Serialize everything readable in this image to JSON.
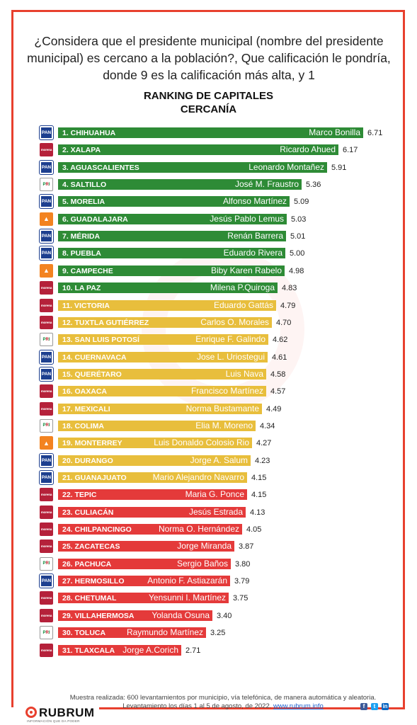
{
  "question": "¿Considera que el presidente municipal   (nombre del presidente municipal) es cercano a la población?, Que calificación le pondría, donde 9 es la calificación más alta, y  1",
  "chart_data": {
    "type": "bar",
    "title": "RANKING DE CAPITALES",
    "subtitle": "CERCANÍA",
    "orientation": "horizontal",
    "colors": {
      "green": "#2e8b36",
      "yellow": "#e8be3c",
      "red": "#e43a3a"
    },
    "rows": [
      {
        "label": "1. CHIHUAHUA",
        "name": "Marco Bonilla",
        "value": 6.71,
        "value_label": "6.71",
        "party": "PAN",
        "color": "green"
      },
      {
        "label": "2. XALAPA",
        "name": "Ricardo Ahued",
        "value": 6.17,
        "value_label": "6.17",
        "party": "morena",
        "color": "green"
      },
      {
        "label": "3. AGUASCALIENTES",
        "name": "Leonardo Montañez",
        "value": 5.91,
        "value_label": "5.91",
        "party": "PAN",
        "color": "green"
      },
      {
        "label": "4. SALTILLO",
        "name": "José M. Fraustro",
        "value": 5.36,
        "value_label": "5.36",
        "party": "PRI",
        "color": "green"
      },
      {
        "label": "5. MORELIA",
        "name": "Alfonso Martínez",
        "value": 5.09,
        "value_label": "5.09",
        "party": "PAN",
        "color": "green"
      },
      {
        "label": "6. GUADALAJARA",
        "name": "Jesús Pablo Lemus",
        "value": 5.03,
        "value_label": "5.03",
        "party": "MC",
        "color": "green"
      },
      {
        "label": "7. MÉRIDA",
        "name": "Renán Barrera",
        "value": 5.01,
        "value_label": "5.01",
        "party": "PAN",
        "color": "green"
      },
      {
        "label": "8. PUEBLA",
        "name": "Eduardo Rivera",
        "value": 5.0,
        "value_label": "5.00",
        "party": "PAN",
        "color": "green"
      },
      {
        "label": "9. CAMPECHE",
        "name": "Biby Karen Rabelo",
        "value": 4.98,
        "value_label": "4.98",
        "party": "MC",
        "color": "green"
      },
      {
        "label": "10. LA PAZ",
        "name": "Milena P.Quiroga",
        "value": 4.83,
        "value_label": "4.83",
        "party": "morena",
        "color": "green"
      },
      {
        "label": "11. VICTORIA",
        "name": "Eduardo Gattás",
        "value": 4.79,
        "value_label": "4.79",
        "party": "morena",
        "color": "yellow"
      },
      {
        "label": "12. TUXTLA GUTIÉRREZ",
        "name": "Carlos O. Morales",
        "value": 4.7,
        "value_label": "4.70",
        "party": "morena",
        "color": "yellow"
      },
      {
        "label": "13. SAN LUIS POTOSÍ",
        "name": "Enrique F. Galindo",
        "value": 4.62,
        "value_label": "4.62",
        "party": "PRI",
        "color": "yellow"
      },
      {
        "label": "14. CUERNAVACA",
        "name": "Jose L. Uriostegui",
        "value": 4.61,
        "value_label": "4.61",
        "party": "PAN",
        "color": "yellow"
      },
      {
        "label": "15. QUERÉTARO",
        "name": "Luis Nava",
        "value": 4.58,
        "value_label": "4.58",
        "party": "PAN",
        "color": "yellow"
      },
      {
        "label": "16. OAXACA",
        "name": "Francisco Martínez",
        "value": 4.57,
        "value_label": "4.57",
        "party": "morena",
        "color": "yellow"
      },
      {
        "label": "17. MEXICALI",
        "name": "Norma  Bustamante",
        "value": 4.49,
        "value_label": "4.49",
        "party": "morena",
        "color": "yellow"
      },
      {
        "label": "18. COLIMA",
        "name": "Elia M. Moreno",
        "value": 4.34,
        "value_label": "4.34",
        "party": "PRI",
        "color": "yellow"
      },
      {
        "label": "19. MONTERREY",
        "name": "Luis Donaldo Colosio Rio",
        "value": 4.27,
        "value_label": "4.27",
        "party": "MC",
        "color": "yellow"
      },
      {
        "label": "20. DURANGO",
        "name": "Jorge A. Salum",
        "value": 4.23,
        "value_label": "4.23",
        "party": "PAN",
        "color": "yellow"
      },
      {
        "label": "21. GUANAJUATO",
        "name": "Mario Alejandro Navarro",
        "value": 4.15,
        "value_label": "4.15",
        "party": "PAN",
        "color": "yellow"
      },
      {
        "label": "22. TEPIC",
        "name": "Maria G. Ponce",
        "value": 4.15,
        "value_label": "4.15",
        "party": "morena",
        "color": "red"
      },
      {
        "label": "23. CULIACÁN",
        "name": "Jesús Estrada",
        "value": 4.13,
        "value_label": "4.13",
        "party": "morena",
        "color": "red"
      },
      {
        "label": "24. CHILPANCINGO",
        "name": "Norma O. Hernández",
        "value": 4.05,
        "value_label": "4.05",
        "party": "morena",
        "color": "red"
      },
      {
        "label": "25. ZACATECAS",
        "name": "Jorge Miranda",
        "value": 3.87,
        "value_label": "3.87",
        "party": "morena",
        "color": "red"
      },
      {
        "label": "26. PACHUCA",
        "name": "Sergio Baños",
        "value": 3.8,
        "value_label": "3.80",
        "party": "PRI",
        "color": "red"
      },
      {
        "label": "27. HERMOSILLO",
        "name": "Antonio F. Astiazarán",
        "value": 3.79,
        "value_label": "3.79",
        "party": "PAN",
        "color": "red"
      },
      {
        "label": "28. CHETUMAL",
        "name": "Yensunni I. Martínez",
        "value": 3.75,
        "value_label": "3.75",
        "party": "morena",
        "color": "red"
      },
      {
        "label": "29. VILLAHERMOSA",
        "name": "Yolanda Osuna",
        "value": 3.4,
        "value_label": "3.40",
        "party": "morena",
        "color": "red"
      },
      {
        "label": "30. TOLUCA",
        "name": "Raymundo  Martínez",
        "value": 3.25,
        "value_label": "3.25",
        "party": "PRI",
        "color": "red"
      },
      {
        "label": "31. TLAXCALA",
        "name": "Jorge A.Corich",
        "value": 2.71,
        "value_label": "2.71",
        "party": "morena",
        "color": "red"
      }
    ]
  },
  "party_logo_text": {
    "PAN": "PAN",
    "morena": "morena",
    "PRI": "PRI",
    "MC": "MC"
  },
  "footer": {
    "line1": "Muestra realizada: 600 levantamientos por municipio, vía telefónica, de manera automática y aleatoria.",
    "line2": "Levantamiento los días 1 al 5 de agosto,   de 2022.",
    "link": "www.rubrum.info"
  },
  "brand": {
    "name": "RUBRUM",
    "tagline": "INFORMACIÓN QUE DA PODER"
  },
  "social_icons": [
    "facebook-icon",
    "twitter-icon",
    "linkedin-icon"
  ]
}
